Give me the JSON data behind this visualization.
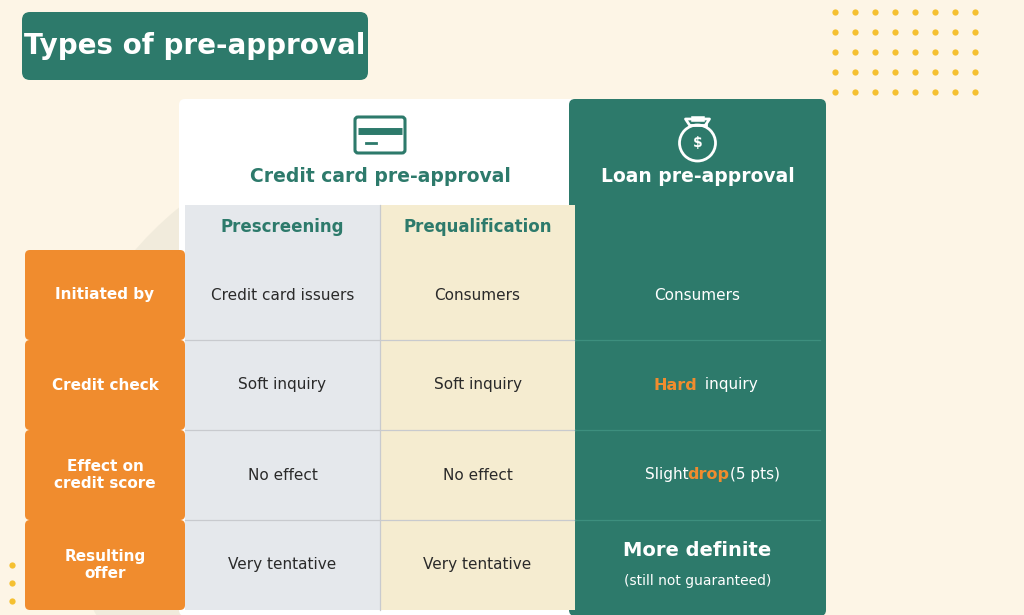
{
  "title": "Types of pre-approval",
  "title_bg_color": "#2d7a6b",
  "title_text_color": "#ffffff",
  "background_color": "#fdf5e6",
  "row_label_bg_color": "#f08c2e",
  "row_label_text_color": "#ffffff",
  "col_header_text_color": "#2d7a6b",
  "loan_col_bg": "#2d7a6b",
  "loan_col_text_color": "#ffffff",
  "prescreening_bg": "#e5e8ec",
  "prequalification_bg": "#f5ecd0",
  "white_bg": "#ffffff",
  "orange_accent": "#f08c2e",
  "yellow_dots_color": "#f5c030",
  "row_labels": [
    "Initiated by",
    "Credit check",
    "Effect on\ncredit score",
    "Resulting\noffer"
  ],
  "prescreening_values": [
    "Credit card issuers",
    "Soft inquiry",
    "No effect",
    "Very tentative"
  ],
  "prequalification_values": [
    "Consumers",
    "Soft inquiry",
    "No effect",
    "Very tentative"
  ]
}
